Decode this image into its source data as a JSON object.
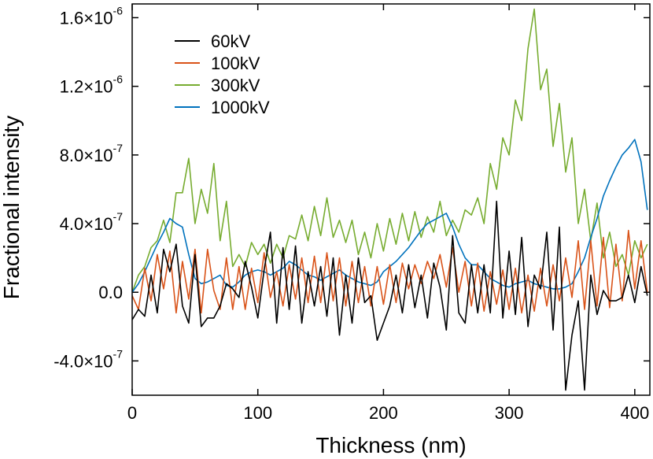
{
  "chart_data": {
    "type": "line",
    "xlabel": "Thickness (nm)",
    "ylabel": "Fractional intensity",
    "xlim": [
      0,
      412
    ],
    "ylim": [
      -6e-07,
      1.68e-06
    ],
    "x_ticks": [
      {
        "value": 0,
        "label": "0"
      },
      {
        "value": 100,
        "label": "100"
      },
      {
        "value": 200,
        "label": "200"
      },
      {
        "value": 300,
        "label": "300"
      },
      {
        "value": 400,
        "label": "400"
      }
    ],
    "y_ticks": [
      {
        "value": -4e-07,
        "mantissa": "-4.0",
        "exponent": "-7"
      },
      {
        "value": 0,
        "mantissa": "0.0",
        "exponent": ""
      },
      {
        "value": 4e-07,
        "mantissa": "4.0",
        "exponent": "-7"
      },
      {
        "value": 8e-07,
        "mantissa": "8.0",
        "exponent": "-7"
      },
      {
        "value": 1.2e-06,
        "mantissa": "1.2",
        "exponent": "-6"
      },
      {
        "value": 1.6e-06,
        "mantissa": "1.6",
        "exponent": "-6"
      }
    ],
    "legend_position": "top-left",
    "series": [
      {
        "name": "60kV",
        "color": "#000000",
        "x": [
          0,
          5,
          10,
          15,
          20,
          25,
          30,
          35,
          40,
          45,
          50,
          55,
          60,
          65,
          70,
          75,
          80,
          85,
          90,
          95,
          100,
          105,
          110,
          115,
          120,
          125,
          130,
          135,
          140,
          145,
          150,
          155,
          160,
          165,
          170,
          175,
          180,
          185,
          190,
          195,
          200,
          205,
          210,
          215,
          220,
          225,
          230,
          235,
          240,
          245,
          250,
          255,
          260,
          265,
          270,
          275,
          280,
          285,
          290,
          295,
          300,
          305,
          310,
          315,
          320,
          325,
          330,
          335,
          340,
          345,
          350,
          355,
          360,
          365,
          370,
          375,
          380,
          385,
          390,
          395,
          400,
          405,
          410
        ],
        "y": [
          -1.6e-07,
          -1e-07,
          -1.4e-07,
          1e-07,
          -1.2e-07,
          2.5e-07,
          1.2e-07,
          2.8e-07,
          -8e-08,
          -1.8e-07,
          2.2e-07,
          -2e-07,
          -1.5e-07,
          -1.5e-07,
          -8e-08,
          5e-08,
          2e-08,
          -3e-08,
          1.8e-07,
          3e-08,
          -1.5e-07,
          1.3e-07,
          3.5e-07,
          -1.8e-07,
          2.6e-07,
          -1e-07,
          2.7e-07,
          -1.8e-07,
          1.2e-07,
          -8e-08,
          1.5e-07,
          -1.4e-07,
          2e-07,
          -2.5e-07,
          1e-07,
          -1.8e-07,
          2e-07,
          -6e-08,
          -2e-08,
          -2.8e-07,
          -1.8e-07,
          -8e-08,
          1e-07,
          -1.2e-07,
          1.6e-07,
          -9e-08,
          1e-07,
          -1.5e-07,
          1.7e-07,
          3e-08,
          -2.2e-07,
          3.3e-07,
          -1.2e-07,
          -1.8e-07,
          1.6e-07,
          -1.2e-07,
          1.6e-07,
          -1.2e-07,
          5.3e-07,
          -1.5e-07,
          2.4e-07,
          -1.3e-07,
          3.2e-07,
          -2e-07,
          1e-07,
          2e-08,
          3.5e-07,
          -2.2e-07,
          3.8e-07,
          -5.7e-07,
          -2.5e-07,
          -5e-08,
          -5.7e-07,
          1e-07,
          -1.3e-07,
          1e-08,
          -5e-08,
          -5e-08,
          -3e-08,
          1e-07,
          -6e-08,
          1.5e-07,
          -2e-08
        ]
      },
      {
        "name": "100kV",
        "color": "#d95319",
        "x": [
          0,
          5,
          10,
          15,
          20,
          25,
          30,
          35,
          40,
          45,
          50,
          55,
          60,
          65,
          70,
          75,
          80,
          85,
          90,
          95,
          100,
          105,
          110,
          115,
          120,
          125,
          130,
          135,
          140,
          145,
          150,
          155,
          160,
          165,
          170,
          175,
          180,
          185,
          190,
          195,
          200,
          205,
          210,
          215,
          220,
          225,
          230,
          235,
          240,
          245,
          250,
          255,
          260,
          265,
          270,
          275,
          280,
          285,
          290,
          295,
          300,
          305,
          310,
          315,
          320,
          325,
          330,
          335,
          340,
          345,
          350,
          355,
          360,
          365,
          370,
          375,
          380,
          385,
          390,
          395,
          400,
          405,
          410
        ],
        "y": [
          -2e-08,
          -1e-07,
          1.4e-07,
          -5e-08,
          2.2e-07,
          2e-08,
          2.4e-07,
          -1.2e-07,
          1.8e-07,
          -4e-08,
          2.5e-07,
          -1.2e-07,
          2.5e-07,
          1e-08,
          -1e-07,
          2e-07,
          -1e-07,
          1.5e-07,
          -1e-07,
          1.4e-07,
          -6e-08,
          2.3e-07,
          -3e-08,
          1.2e-07,
          -8e-08,
          1.6e-07,
          -4e-08,
          2e-07,
          -6e-08,
          2.1e-07,
          -6e-08,
          2.3e-07,
          -5e-08,
          2e-07,
          -8e-08,
          1.8e-07,
          -6e-08,
          1.5e-07,
          -8e-08,
          1.5e-07,
          -7e-08,
          1.6e-07,
          -6e-08,
          1.7e-07,
          2e-08,
          1.6e-07,
          5e-08,
          1.8e-07,
          8e-08,
          2.2e-07,
          3e-08,
          2.6e-07,
          0.0,
          1.8e-07,
          -8e-08,
          1.7e-07,
          -1.1e-07,
          1.2e-07,
          -7e-08,
          1.3e-07,
          -1e-07,
          1.4e-07,
          -1.2e-07,
          1e-07,
          -1.1e-07,
          1.4e-07,
          -8e-08,
          1.6e-07,
          -5e-08,
          2e-07,
          -3e-08,
          3e-07,
          -1e-07,
          3e-07,
          -8e-08,
          3.2e-07,
          -9e-08,
          2.8e-07,
          -5e-08,
          3.6e-07,
          2e-08,
          3e-07,
          0.0
        ]
      },
      {
        "name": "300kV",
        "color": "#77ac30",
        "x": [
          0,
          5,
          10,
          15,
          20,
          25,
          30,
          35,
          40,
          45,
          50,
          55,
          60,
          65,
          70,
          75,
          80,
          85,
          90,
          95,
          100,
          105,
          110,
          115,
          120,
          125,
          130,
          135,
          140,
          145,
          150,
          155,
          160,
          165,
          170,
          175,
          180,
          185,
          190,
          195,
          200,
          205,
          210,
          215,
          220,
          225,
          230,
          235,
          240,
          245,
          250,
          255,
          260,
          265,
          270,
          275,
          280,
          285,
          290,
          295,
          300,
          305,
          310,
          315,
          320,
          325,
          330,
          335,
          340,
          345,
          350,
          355,
          360,
          365,
          370,
          375,
          380,
          385,
          390,
          395,
          400,
          405,
          410
        ],
        "y": [
          0.0,
          1e-07,
          1.5e-07,
          2.6e-07,
          3e-07,
          4.2e-07,
          2.9e-07,
          5.8e-07,
          5.8e-07,
          7.8e-07,
          4e-07,
          6e-07,
          4.6e-07,
          7.5e-07,
          3e-07,
          5.3e-07,
          1.5e-07,
          2.2e-07,
          1.5e-07,
          2.9e-07,
          2.2e-07,
          2.8e-07,
          1.7e-07,
          2.8e-07,
          2e-07,
          3.3e-07,
          3.1e-07,
          4.5e-07,
          3e-07,
          5e-07,
          3.3e-07,
          5.5e-07,
          3.2e-07,
          4.2e-07,
          2.9e-07,
          4.2e-07,
          2.2e-07,
          3.5e-07,
          2e-07,
          4e-07,
          2.4e-07,
          4.3e-07,
          2.8e-07,
          4.6e-07,
          3e-07,
          4.7e-07,
          3.2e-07,
          4.4e-07,
          3.5e-07,
          5.3e-07,
          3.3e-07,
          4.2e-07,
          3.5e-07,
          4.8e-07,
          4.5e-07,
          5.5e-07,
          4e-07,
          7.5e-07,
          6e-07,
          9e-07,
          8e-07,
          1.12e-06,
          1e-06,
          1.42e-06,
          1.65e-06,
          1.18e-06,
          1.3e-06,
          8.5e-07,
          1.1e-06,
          7e-07,
          9e-07,
          4e-07,
          6e-07,
          3e-07,
          5.2e-07,
          2e-07,
          3.5e-07,
          1.5e-07,
          2.2e-07,
          1e-07,
          3e-07,
          2e-07,
          2.8e-07
        ]
      },
      {
        "name": "1000kV",
        "color": "#0072bd",
        "x": [
          0,
          5,
          10,
          15,
          20,
          25,
          30,
          35,
          40,
          45,
          50,
          55,
          60,
          65,
          70,
          75,
          80,
          85,
          90,
          95,
          100,
          105,
          110,
          115,
          120,
          125,
          130,
          135,
          140,
          145,
          150,
          155,
          160,
          165,
          170,
          175,
          180,
          185,
          190,
          195,
          200,
          205,
          210,
          215,
          220,
          225,
          230,
          235,
          240,
          245,
          250,
          255,
          260,
          265,
          270,
          275,
          280,
          285,
          290,
          295,
          300,
          305,
          310,
          315,
          320,
          325,
          330,
          335,
          340,
          345,
          350,
          355,
          360,
          365,
          370,
          375,
          380,
          385,
          390,
          395,
          400,
          405,
          410
        ],
        "y": [
          0.0,
          5e-08,
          1.2e-07,
          2e-07,
          2.8e-07,
          3.5e-07,
          4.3e-07,
          4e-07,
          3.8e-07,
          2.2e-07,
          8e-08,
          5e-08,
          6e-08,
          8e-08,
          1e-07,
          4e-08,
          3e-08,
          6e-08,
          1e-07,
          1.2e-07,
          1.3e-07,
          1.2e-07,
          1e-07,
          1.2e-07,
          1.4e-07,
          1.8e-07,
          1.6e-07,
          1.3e-07,
          1e-07,
          9e-08,
          7e-08,
          9e-08,
          1.1e-07,
          1.3e-07,
          1e-07,
          8e-08,
          6e-08,
          5e-08,
          4e-08,
          6e-08,
          1.2e-07,
          1.5e-07,
          1.8e-07,
          2.2e-07,
          2.6e-07,
          3.1e-07,
          3.6e-07,
          4e-07,
          4.2e-07,
          4.4e-07,
          4.6e-07,
          3.8e-07,
          2.8e-07,
          2e-07,
          1.6e-07,
          1.6e-07,
          1.2e-07,
          8e-08,
          6e-08,
          4e-08,
          3e-08,
          5e-08,
          6e-08,
          7e-08,
          5e-08,
          4e-08,
          3e-08,
          2e-08,
          2e-08,
          3e-08,
          5e-08,
          1.2e-07,
          2e-07,
          3.2e-07,
          4.3e-07,
          5.6e-07,
          6.5e-07,
          7.3e-07,
          8e-07,
          8.4e-07,
          8.9e-07,
          7.6e-07,
          4.8e-07
        ]
      }
    ]
  }
}
